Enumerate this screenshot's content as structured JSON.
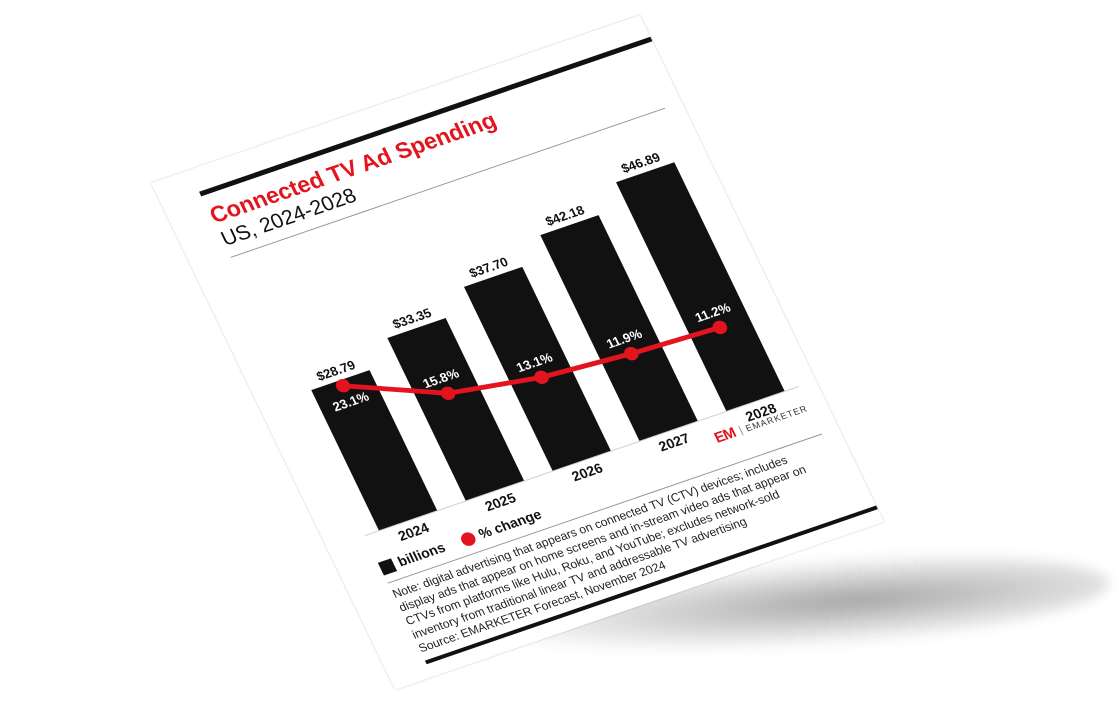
{
  "chart_data": {
    "type": "bar",
    "title": "Connected TV Ad Spending",
    "subtitle": "US, 2024-2028",
    "categories": [
      "2024",
      "2025",
      "2026",
      "2027",
      "2028"
    ],
    "series": [
      {
        "name": "billions",
        "type": "bar",
        "values": [
          28.79,
          33.35,
          37.7,
          42.18,
          46.89
        ],
        "labels": [
          "$28.79",
          "$33.35",
          "$37.70",
          "$42.18",
          "$46.89"
        ],
        "color": "#111111"
      },
      {
        "name": "% change",
        "type": "line",
        "values": [
          23.1,
          15.8,
          13.1,
          11.9,
          11.2
        ],
        "labels": [
          "23.1%",
          "15.8%",
          "13.1%",
          "11.9%",
          "11.2%"
        ],
        "color": "#e4141e"
      }
    ],
    "legend_position": "bottom-left",
    "grid": false
  },
  "note": "Note: digital advertising that appears on connected TV (CTV) devices; includes display ads that appear on home screens and in-stream video ads that appear on CTVs from platforms like Hulu, Roku, and YouTube; excludes network-sold inventory from traditional linear TV and addressable TV advertising",
  "source": "Source: EMARKETER Forecast, November 2024",
  "logo": {
    "mark": "EM",
    "name": "EMARKETER"
  }
}
